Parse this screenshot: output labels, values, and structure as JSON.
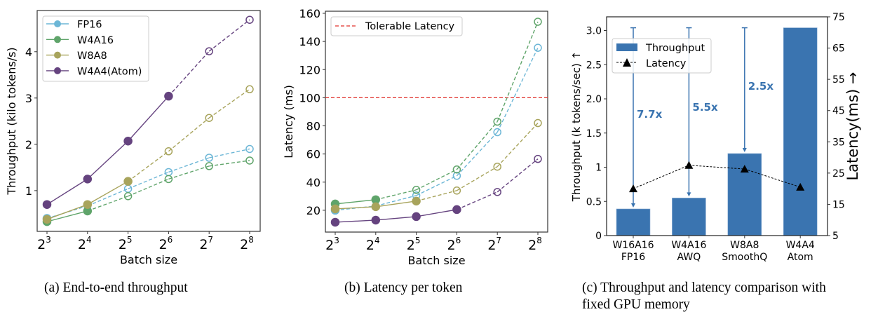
{
  "colors": {
    "FP16": "#6cb6d6",
    "W4A16": "#5fa46a",
    "W8A8": "#a8a45c",
    "W4A4(Atom)": "#65437f",
    "tolerable": "#e0302a",
    "bar": "#3a74b0",
    "latency": "#000000"
  },
  "chart_data": [
    {
      "type": "line",
      "title": "",
      "caption": "(a) End-to-end throughput",
      "xlabel": "Batch size",
      "ylabel": "Throughput (kilo tokens/s)",
      "x": [
        3,
        4,
        5,
        6,
        7,
        8
      ],
      "xtick_base": "2",
      "xtick_exps": [
        "3",
        "4",
        "5",
        "6",
        "7",
        "8"
      ],
      "ylim": [
        0.12,
        4.89
      ],
      "yticks": [
        1,
        2,
        3,
        4
      ],
      "ytick_labels": [
        "1",
        "2",
        "3",
        "4"
      ],
      "legend": "top-left",
      "series": [
        {
          "name": "FP16",
          "values": [
            0.4,
            0.67,
            1.04,
            1.4,
            1.71,
            1.9
          ],
          "filled_until": 0
        },
        {
          "name": "W4A16",
          "values": [
            0.33,
            0.56,
            0.88,
            1.25,
            1.53,
            1.65
          ],
          "filled_until": 1
        },
        {
          "name": "W8A8",
          "values": [
            0.38,
            0.7,
            1.2,
            1.85,
            2.57,
            3.19
          ],
          "filled_until": 2
        },
        {
          "name": "W4A4(Atom)",
          "values": [
            0.7,
            1.25,
            2.07,
            3.04,
            4.01,
            4.69
          ],
          "filled_until": 3
        }
      ]
    },
    {
      "type": "line",
      "title": "",
      "caption": "(b) Latency per token",
      "xlabel": "Batch size",
      "ylabel": "Latency (ms)",
      "x": [
        3,
        4,
        5,
        6,
        7,
        8
      ],
      "xtick_base": "2",
      "xtick_exps": [
        "3",
        "4",
        "5",
        "6",
        "7",
        "8"
      ],
      "ylim": [
        4.5,
        161.5
      ],
      "yticks": [
        20,
        40,
        60,
        80,
        100,
        120,
        140,
        160
      ],
      "ytick_labels": [
        "20",
        "40",
        "60",
        "80",
        "100",
        "120",
        "140",
        "160"
      ],
      "legend": "top-left",
      "reference_line": {
        "name": "Tolerable Latency",
        "value": 100
      },
      "series": [
        {
          "name": "FP16",
          "values": [
            20,
            23,
            30.5,
            44.5,
            75.5,
            135.5
          ],
          "filled_until": 0
        },
        {
          "name": "W4A16",
          "values": [
            24.5,
            27.5,
            34.5,
            49,
            83,
            154
          ],
          "filled_until": 1
        },
        {
          "name": "W8A8",
          "values": [
            21,
            22.5,
            26.5,
            34,
            51,
            82
          ],
          "filled_until": 2
        },
        {
          "name": "W4A4(Atom)",
          "values": [
            11.5,
            13,
            15.5,
            20.5,
            33,
            56.5
          ],
          "filled_until": 3
        }
      ]
    },
    {
      "type": "bar",
      "title": "",
      "caption_line1": "(c) Throughput and latency comparison with",
      "caption_line2": "fixed GPU memory",
      "categories": [
        [
          "W16A16",
          "FP16"
        ],
        [
          "W4A16",
          "AWQ"
        ],
        [
          "W8A8",
          "SmoothQ"
        ],
        [
          "W4A4",
          "Atom"
        ]
      ],
      "ylabel": "Throughput (k tokens/sec) ↑",
      "y2label": "Latency(ms) →",
      "ylim": [
        0,
        3.2
      ],
      "yticks": [
        0,
        0.5,
        1,
        1.5,
        2,
        2.5,
        3
      ],
      "ytick_labels": [
        "0",
        "0.5",
        "1",
        "1.5",
        "2.0",
        "2.5",
        "3.0"
      ],
      "y2lim": [
        5,
        75
      ],
      "y2ticks": [
        5,
        15,
        25,
        35,
        45,
        55,
        65,
        75
      ],
      "y2tick_labels": [
        "5",
        "15",
        "25",
        "35",
        "45",
        "55",
        "65",
        "75"
      ],
      "legend": "top-left",
      "series": [
        {
          "name": "Throughput",
          "kind": "bar",
          "values": [
            0.39,
            0.55,
            1.2,
            3.04
          ]
        },
        {
          "name": "Latency",
          "kind": "line",
          "axis": "right",
          "values": [
            20,
            27.5,
            26.3,
            20.5
          ]
        }
      ],
      "annotations": [
        {
          "label": "7.7x",
          "category": 0
        },
        {
          "label": "5.5x",
          "category": 1
        },
        {
          "label": "2.5x",
          "category": 2
        }
      ]
    }
  ]
}
